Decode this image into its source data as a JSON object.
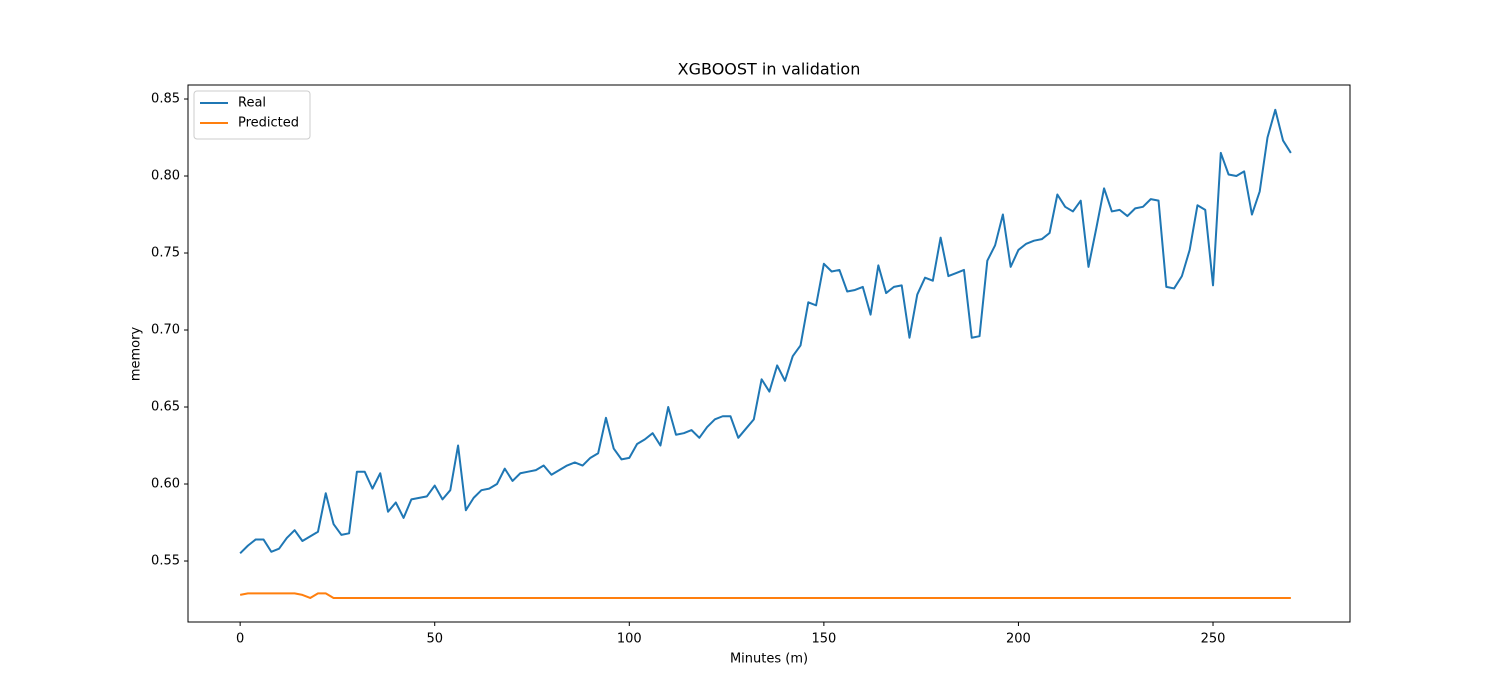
{
  "chart_data": {
    "type": "line",
    "title": "XGBOOST in validation",
    "xlabel": "Minutes (m)",
    "ylabel": "memory",
    "x": [
      0,
      2,
      4,
      6,
      8,
      10,
      12,
      14,
      16,
      18,
      20,
      22,
      24,
      26,
      28,
      30,
      32,
      34,
      36,
      38,
      40,
      42,
      44,
      46,
      48,
      50,
      52,
      54,
      56,
      58,
      60,
      62,
      64,
      66,
      68,
      70,
      72,
      74,
      76,
      78,
      80,
      82,
      84,
      86,
      88,
      90,
      92,
      94,
      96,
      98,
      100,
      102,
      104,
      106,
      108,
      110,
      112,
      114,
      116,
      118,
      120,
      122,
      124,
      126,
      128,
      130,
      132,
      134,
      136,
      138,
      140,
      142,
      144,
      146,
      148,
      150,
      152,
      154,
      156,
      158,
      160,
      162,
      164,
      166,
      168,
      170,
      172,
      174,
      176,
      178,
      180,
      182,
      184,
      186,
      188,
      190,
      192,
      194,
      196,
      198,
      200,
      202,
      204,
      206,
      208,
      210,
      212,
      214,
      216,
      218,
      220,
      222,
      224,
      226,
      228,
      230,
      232,
      234,
      236,
      238,
      240,
      242,
      244,
      246,
      248,
      250,
      252,
      254,
      256,
      258,
      260,
      262,
      264,
      266,
      268,
      270
    ],
    "series": [
      {
        "name": "Real",
        "color": "#1f77b4",
        "values": [
          0.555,
          0.56,
          0.564,
          0.564,
          0.556,
          0.558,
          0.565,
          0.57,
          0.563,
          0.566,
          0.569,
          0.594,
          0.574,
          0.567,
          0.568,
          0.608,
          0.608,
          0.597,
          0.607,
          0.582,
          0.588,
          0.578,
          0.59,
          0.591,
          0.592,
          0.599,
          0.59,
          0.596,
          0.625,
          0.583,
          0.591,
          0.596,
          0.597,
          0.6,
          0.61,
          0.602,
          0.607,
          0.608,
          0.609,
          0.612,
          0.606,
          0.609,
          0.612,
          0.614,
          0.612,
          0.617,
          0.62,
          0.643,
          0.623,
          0.616,
          0.617,
          0.626,
          0.629,
          0.633,
          0.625,
          0.65,
          0.632,
          0.633,
          0.635,
          0.63,
          0.637,
          0.642,
          0.644,
          0.644,
          0.63,
          0.636,
          0.642,
          0.668,
          0.66,
          0.677,
          0.667,
          0.683,
          0.69,
          0.718,
          0.716,
          0.743,
          0.738,
          0.739,
          0.725,
          0.726,
          0.728,
          0.71,
          0.742,
          0.724,
          0.728,
          0.729,
          0.695,
          0.723,
          0.734,
          0.732,
          0.76,
          0.735,
          0.737,
          0.739,
          0.695,
          0.696,
          0.745,
          0.755,
          0.775,
          0.741,
          0.752,
          0.756,
          0.758,
          0.759,
          0.763,
          0.788,
          0.78,
          0.777,
          0.784,
          0.741,
          0.766,
          0.792,
          0.777,
          0.778,
          0.774,
          0.779,
          0.78,
          0.785,
          0.784,
          0.728,
          0.727,
          0.735,
          0.752,
          0.781,
          0.778,
          0.729,
          0.815,
          0.801,
          0.8,
          0.803,
          0.775,
          0.79,
          0.825,
          0.843,
          0.823,
          0.815
        ]
      },
      {
        "name": "Predicted",
        "color": "#ff7f0e",
        "values": [
          0.528,
          0.529,
          0.529,
          0.529,
          0.529,
          0.529,
          0.529,
          0.529,
          0.528,
          0.526,
          0.529,
          0.529,
          0.526,
          0.526,
          0.526,
          0.526,
          0.526,
          0.526,
          0.526,
          0.526,
          0.526,
          0.526,
          0.526,
          0.526,
          0.526,
          0.526,
          0.526,
          0.526,
          0.526,
          0.526,
          0.526,
          0.526,
          0.526,
          0.526,
          0.526,
          0.526,
          0.526,
          0.526,
          0.526,
          0.526,
          0.526,
          0.526,
          0.526,
          0.526,
          0.526,
          0.526,
          0.526,
          0.526,
          0.526,
          0.526,
          0.526,
          0.526,
          0.526,
          0.526,
          0.526,
          0.526,
          0.526,
          0.526,
          0.526,
          0.526,
          0.526,
          0.526,
          0.526,
          0.526,
          0.526,
          0.526,
          0.526,
          0.526,
          0.526,
          0.526,
          0.526,
          0.526,
          0.526,
          0.526,
          0.526,
          0.526,
          0.526,
          0.526,
          0.526,
          0.526,
          0.526,
          0.526,
          0.526,
          0.526,
          0.526,
          0.526,
          0.526,
          0.526,
          0.526,
          0.526,
          0.526,
          0.526,
          0.526,
          0.526,
          0.526,
          0.526,
          0.526,
          0.526,
          0.526,
          0.526,
          0.526,
          0.526,
          0.526,
          0.526,
          0.526,
          0.526,
          0.526,
          0.526,
          0.526,
          0.526,
          0.526,
          0.526,
          0.526,
          0.526,
          0.526,
          0.526,
          0.526,
          0.526,
          0.526,
          0.526,
          0.526,
          0.526,
          0.526,
          0.526,
          0.526,
          0.526,
          0.526,
          0.526,
          0.526,
          0.526,
          0.526,
          0.526,
          0.526,
          0.526,
          0.526,
          0.526
        ]
      }
    ],
    "xlim": [
      -13.4,
      285.2
    ],
    "xticks": [
      0,
      50,
      100,
      150,
      200,
      250
    ],
    "ylim": [
      0.5104,
      0.8591
    ],
    "yticks": [
      0.55,
      {
        "value": 0.6,
        "label": "0.60"
      },
      0.65,
      {
        "value": 0.7,
        "label": "0.70"
      },
      0.75,
      {
        "value": 0.8,
        "label": "0.80"
      },
      0.85
    ],
    "legend": "upper left"
  }
}
